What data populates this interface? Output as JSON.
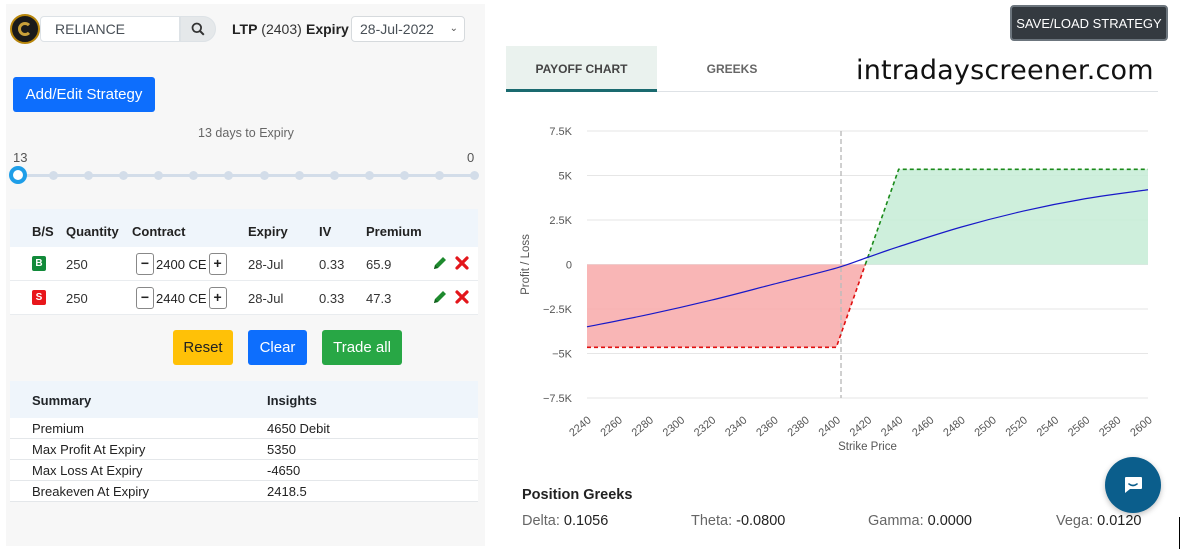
{
  "header": {
    "symbol": "RELIANCE",
    "ltp_label": "LTP",
    "ltp_value": "(2403)",
    "expiry_label": "Expiry",
    "expiry_value": "28-Jul-2022"
  },
  "strategy": {
    "add_edit_label": "Add/Edit Strategy",
    "days_to_expiry": "13 days to Expiry",
    "slider_min": "13",
    "slider_max": "0",
    "slider_value": 13
  },
  "legs": {
    "headers": [
      "B/S",
      "Quantity",
      "Contract",
      "Expiry",
      "IV",
      "Premium"
    ],
    "rows": [
      {
        "bs": "B",
        "quantity": "250",
        "contract": "2400 CE",
        "expiry": "28-Jul",
        "iv": "0.33",
        "premium": "65.9"
      },
      {
        "bs": "S",
        "quantity": "250",
        "contract": "2440 CE",
        "expiry": "28-Jul",
        "iv": "0.33",
        "premium": "47.3"
      }
    ]
  },
  "actions": {
    "reset": "Reset",
    "clear": "Clear",
    "trade_all": "Trade all"
  },
  "summary": {
    "headers": [
      "Summary",
      "Insights"
    ],
    "rows": [
      {
        "label": "Premium",
        "value": "4650 Debit"
      },
      {
        "label": "Max Profit At Expiry",
        "value": "5350"
      },
      {
        "label": "Max Loss At Expiry",
        "value": "-4650"
      },
      {
        "label": "Breakeven At Expiry",
        "value": "2418.5"
      }
    ]
  },
  "right": {
    "save_load": "SAVE/LOAD STRATEGY",
    "tab_payoff": "PAYOFF CHART",
    "tab_greeks": "GREEKS",
    "brand": "intradayscreener.com"
  },
  "chart_data": {
    "type": "line",
    "xlabel": "Strike Price",
    "ylabel": "Profit / Loss",
    "xlim": [
      2240,
      2600
    ],
    "ylim": [
      -7500,
      7500
    ],
    "x_ticks": [
      "2240",
      "2260",
      "2280",
      "2300",
      "2320",
      "2340",
      "2360",
      "2380",
      "2400",
      "2420",
      "2440",
      "2460",
      "2480",
      "2500",
      "2520",
      "2540",
      "2560",
      "2580",
      "2600"
    ],
    "y_ticks": [
      "7.5K",
      "5K",
      "2.5K",
      "0",
      "−2.5K",
      "−5K",
      "−7.5K"
    ],
    "y_tick_values": [
      7500,
      5000,
      2500,
      0,
      -2500,
      -5000,
      -7500
    ],
    "spot_line": 2403,
    "series": [
      {
        "style": "expiry",
        "x": [
          2240,
          2400,
          2440,
          2600
        ],
        "y": [
          -4650,
          -4650,
          5350,
          5350
        ]
      },
      {
        "style": "today",
        "x": [
          2240,
          2280,
          2320,
          2360,
          2400,
          2420,
          2440,
          2480,
          2520,
          2560,
          2600
        ],
        "y": [
          -3500,
          -2800,
          -2000,
          -1100,
          -200,
          400,
          1000,
          2100,
          3000,
          3700,
          4200
        ]
      }
    ],
    "colors": {
      "profit_fill": "#c6ecd6",
      "loss_fill": "#f8a9a9",
      "expiry_profit": "#1a8a1a",
      "expiry_loss": "#e01010",
      "today": "#1818c8",
      "spot": "#bbbbbb"
    }
  },
  "greeks": {
    "title": "Position Greeks",
    "items": [
      {
        "label": "Delta:",
        "value": "0.1056"
      },
      {
        "label": "Theta:",
        "value": "-0.0800"
      },
      {
        "label": "Gamma:",
        "value": "0.0000"
      },
      {
        "label": "Vega:",
        "value": "0.0120"
      }
    ]
  }
}
